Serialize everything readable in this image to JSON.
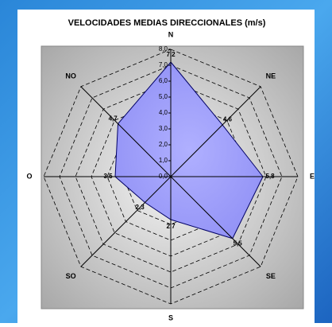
{
  "chart_data": {
    "type": "radar",
    "title": "VELOCIDADES MEDIAS DIRECCIONALES (m/s)",
    "categories": [
      "N",
      "NE",
      "E",
      "SE",
      "S",
      "SO",
      "O",
      "NO"
    ],
    "values": [
      7.2,
      4.6,
      5.8,
      5.5,
      2.7,
      2.3,
      3.5,
      4.7
    ],
    "value_labels": [
      "7,2",
      "4,6",
      "5,8",
      "5,5",
      "2,7",
      "2,3",
      "3,5",
      "4,7"
    ],
    "color": "#9999ff",
    "rlim": [
      0,
      8
    ],
    "rticks": [
      {
        "value": 0,
        "label": "0,0"
      },
      {
        "value": 1,
        "label": "1,0"
      },
      {
        "value": 2,
        "label": "2,0"
      },
      {
        "value": 3,
        "label": "3,0"
      },
      {
        "value": 4,
        "label": "4,0"
      },
      {
        "value": 5,
        "label": "5,0"
      },
      {
        "value": 6,
        "label": "6,0"
      },
      {
        "value": 7,
        "label": "7,0"
      },
      {
        "value": 8,
        "label": "8,0"
      }
    ],
    "grid": true
  }
}
